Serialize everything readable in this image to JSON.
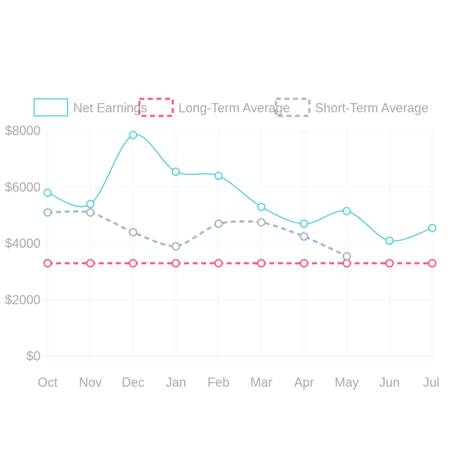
{
  "chart_data": {
    "type": "line",
    "categories": [
      "Oct",
      "Nov",
      "Dec",
      "Jan",
      "Feb",
      "Mar",
      "Apr",
      "May",
      "Jun",
      "Jul"
    ],
    "ylim": [
      0,
      8000
    ],
    "yticks": [
      0,
      2000,
      4000,
      6000,
      8000
    ],
    "ytick_labels": [
      "$0",
      "$2000",
      "$4000",
      "$6000",
      "$8000"
    ],
    "grid": true,
    "legend_position": "top",
    "series": [
      {
        "name": "Net Earnings",
        "color": "#4bc8d4",
        "dashed": false,
        "values": [
          5800,
          5400,
          7850,
          6550,
          6400,
          5300,
          4700,
          5150,
          4100,
          4550
        ]
      },
      {
        "name": "Long-Term Average",
        "color": "#f0607b",
        "dashed": true,
        "values": [
          3300,
          3300,
          3300,
          3300,
          3300,
          3300,
          3300,
          3300,
          3300,
          3300
        ]
      },
      {
        "name": "Short-Term Average",
        "color": "#a9b6c3",
        "dashed": true,
        "values": [
          5100,
          5100,
          4400,
          3900,
          4700,
          4750,
          4250,
          3550,
          null,
          null
        ]
      }
    ]
  }
}
